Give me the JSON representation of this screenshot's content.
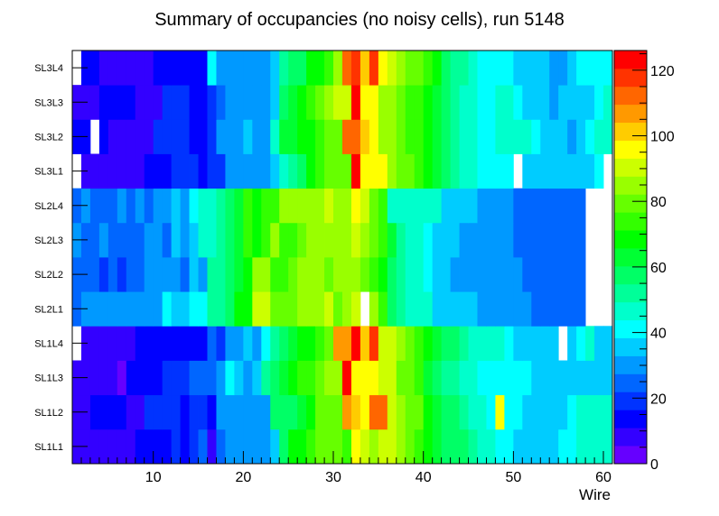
{
  "chart_data": {
    "type": "heatmap",
    "title": "Summary of occupancies (no noisy cells), run 5148",
    "xlabel": "Wire",
    "ylabel": "",
    "x_range": [
      1,
      61
    ],
    "x_ticks": [
      10,
      20,
      30,
      40,
      50,
      60
    ],
    "y_categories": [
      "SL1L1",
      "SL1L2",
      "SL1L3",
      "SL1L4",
      "SL2L1",
      "SL2L2",
      "SL2L3",
      "SL2L4",
      "SL3L1",
      "SL3L2",
      "SL3L3",
      "SL3L4"
    ],
    "z_range": [
      0,
      126
    ],
    "colorbar_ticks": [
      0,
      20,
      40,
      60,
      80,
      100,
      120
    ],
    "colors": [
      "#6600ff",
      "#3300ff",
      "#0000ff",
      "#0033ff",
      "#0066ff",
      "#0099ff",
      "#00ccff",
      "#00ffff",
      "#00ffcc",
      "#00ff99",
      "#00ff66",
      "#00ff33",
      "#00ff00",
      "#33ff00",
      "#66ff00",
      "#99ff00",
      "#ccff00",
      "#ffff00",
      "#ffcc00",
      "#ff9900",
      "#ff6600",
      "#ff3300",
      "#ff0000"
    ],
    "rows": {
      "SL1L1": [
        10,
        10,
        9,
        9,
        9,
        9,
        8,
        14,
        14,
        14,
        12,
        18,
        12,
        18,
        22,
        10,
        25,
        30,
        30,
        30,
        30,
        30,
        35,
        55,
        66,
        70,
        75,
        80,
        80,
        78,
        75,
        95,
        88,
        85,
        90,
        92,
        85,
        80,
        75,
        70,
        65,
        60,
        58,
        55,
        50,
        45,
        44,
        42,
        40,
        38,
        35,
        34,
        36,
        38,
        40,
        42,
        44,
        45,
        46,
        47
      ],
      "SL1L2": [
        10,
        7,
        12,
        12,
        12,
        12,
        7,
        7,
        18,
        18,
        18,
        18,
        12,
        17,
        17,
        12,
        30,
        30,
        30,
        30,
        30,
        30,
        55,
        55,
        55,
        62,
        70,
        78,
        82,
        80,
        108,
        102,
        96,
        110,
        112,
        92,
        85,
        78,
        80,
        70,
        62,
        58,
        55,
        50,
        44,
        45,
        40,
        95,
        42,
        40,
        35,
        35,
        35,
        35,
        35,
        40,
        44,
        44,
        44,
        44
      ],
      "SL1L3": [
        10,
        10,
        10,
        10,
        10,
        5,
        12,
        12,
        12,
        12,
        18,
        18,
        18,
        25,
        25,
        25,
        30,
        42,
        35,
        30,
        35,
        52,
        58,
        62,
        68,
        72,
        76,
        80,
        86,
        85,
        124,
        98,
        98,
        98,
        92,
        90,
        82,
        78,
        72,
        62,
        58,
        52,
        50,
        48,
        46,
        40,
        40,
        40,
        40,
        40,
        40,
        38,
        38,
        38,
        36,
        36,
        36,
        36,
        36,
        36
      ],
      "SL1L4": [
        0,
        8,
        8,
        8,
        8,
        8,
        8,
        12,
        12,
        12,
        12,
        12,
        12,
        12,
        12,
        25,
        18,
        30,
        30,
        35,
        30,
        40,
        52,
        60,
        62,
        66,
        66,
        72,
        80,
        108,
        108,
        124,
        102,
        116,
        92,
        88,
        84,
        78,
        72,
        70,
        62,
        60,
        56,
        50,
        44,
        44,
        44,
        44,
        40,
        36,
        36,
        36,
        36,
        36,
        0,
        36,
        40,
        44,
        38,
        38
      ],
      "SL2L1": [
        24,
        30,
        30,
        30,
        30,
        30,
        30,
        30,
        30,
        30,
        40,
        36,
        36,
        40,
        40,
        52,
        52,
        56,
        66,
        70,
        88,
        88,
        80,
        80,
        80,
        84,
        84,
        84,
        88,
        78,
        86,
        92,
        0,
        84,
        72,
        60,
        52,
        44,
        44,
        44,
        38,
        38,
        38,
        38,
        38,
        30,
        30,
        30,
        30,
        30,
        30,
        24,
        24,
        24,
        24,
        24,
        24,
        0,
        0,
        0
      ],
      "SL2L2": [
        24,
        24,
        24,
        18,
        24,
        18,
        24,
        24,
        30,
        30,
        30,
        30,
        24,
        38,
        30,
        52,
        52,
        58,
        64,
        70,
        84,
        84,
        76,
        72,
        78,
        84,
        84,
        84,
        80,
        84,
        84,
        84,
        80,
        76,
        66,
        56,
        50,
        48,
        44,
        40,
        38,
        36,
        32,
        32,
        32,
        30,
        30,
        30,
        30,
        30,
        24,
        24,
        24,
        24,
        24,
        24,
        24,
        0,
        0,
        0
      ],
      "SL2L3": [
        30,
        24,
        24,
        30,
        24,
        24,
        24,
        24,
        30,
        30,
        24,
        38,
        30,
        38,
        44,
        44,
        52,
        58,
        64,
        74,
        66,
        74,
        84,
        72,
        72,
        78,
        84,
        84,
        84,
        84,
        84,
        90,
        84,
        78,
        72,
        62,
        52,
        44,
        44,
        40,
        38,
        36,
        36,
        32,
        32,
        30,
        30,
        30,
        30,
        24,
        24,
        24,
        24,
        24,
        24,
        24,
        24,
        0,
        0,
        0
      ],
      "SL2L4": [
        24,
        30,
        24,
        24,
        24,
        30,
        24,
        30,
        24,
        30,
        30,
        36,
        30,
        40,
        44,
        44,
        52,
        58,
        62,
        72,
        68,
        76,
        76,
        84,
        84,
        84,
        84,
        84,
        90,
        84,
        84,
        96,
        88,
        78,
        72,
        46,
        44,
        44,
        44,
        44,
        44,
        38,
        36,
        36,
        36,
        30,
        30,
        30,
        30,
        24,
        24,
        24,
        24,
        24,
        24,
        24,
        24,
        0,
        0,
        0
      ],
      "SL3L1": [
        0,
        10,
        10,
        10,
        10,
        10,
        10,
        10,
        14,
        14,
        14,
        18,
        18,
        18,
        12,
        18,
        18,
        30,
        30,
        30,
        30,
        30,
        36,
        44,
        50,
        58,
        66,
        72,
        80,
        78,
        82,
        124,
        94,
        94,
        96,
        86,
        80,
        78,
        72,
        66,
        62,
        58,
        50,
        48,
        44,
        40,
        40,
        40,
        40,
        0,
        36,
        36,
        36,
        36,
        36,
        36,
        36,
        38,
        42,
        0
      ],
      "SL3L2": [
        12,
        12,
        0,
        12,
        10,
        10,
        10,
        10,
        10,
        18,
        18,
        18,
        18,
        12,
        12,
        18,
        30,
        30,
        30,
        38,
        30,
        30,
        44,
        62,
        62,
        66,
        70,
        72,
        80,
        80,
        110,
        110,
        102,
        96,
        86,
        84,
        80,
        72,
        72,
        66,
        62,
        56,
        50,
        48,
        44,
        40,
        40,
        44,
        44,
        44,
        44,
        40,
        36,
        36,
        36,
        30,
        36,
        40,
        44,
        44
      ],
      "SL3L3": [
        10,
        10,
        10,
        12,
        12,
        12,
        12,
        6,
        10,
        10,
        18,
        18,
        18,
        12,
        12,
        18,
        24,
        30,
        30,
        30,
        30,
        30,
        36,
        56,
        62,
        66,
        72,
        80,
        84,
        88,
        92,
        124,
        98,
        94,
        86,
        86,
        80,
        72,
        72,
        66,
        62,
        56,
        52,
        48,
        44,
        40,
        40,
        44,
        44,
        40,
        36,
        36,
        36,
        30,
        36,
        36,
        36,
        36,
        40,
        44
      ],
      "SL3L4": [
        0,
        14,
        14,
        10,
        10,
        10,
        10,
        10,
        10,
        12,
        12,
        12,
        12,
        12,
        12,
        40,
        30,
        30,
        30,
        30,
        30,
        30,
        36,
        52,
        58,
        60,
        66,
        66,
        72,
        86,
        112,
        120,
        102,
        116,
        96,
        90,
        86,
        82,
        78,
        72,
        66,
        58,
        54,
        50,
        44,
        40,
        40,
        40,
        40,
        38,
        36,
        36,
        36,
        30,
        30,
        38,
        40,
        40,
        40,
        40
      ]
    }
  }
}
